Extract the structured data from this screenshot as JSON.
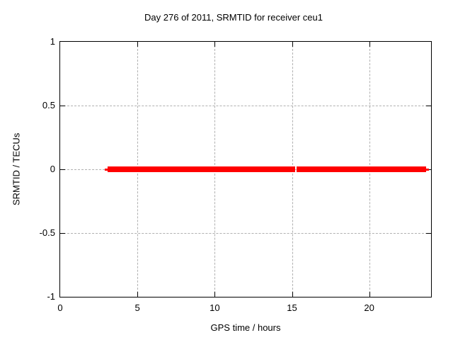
{
  "title": "Day 276 of 2011, SRMTID for receiver ceu1",
  "x_axis": {
    "label": "GPS time / hours",
    "ticks": [
      0,
      5,
      10,
      15,
      20
    ],
    "range": [
      0,
      24
    ]
  },
  "y_axis": {
    "label": "SRMTID / TECUs",
    "ticks": [
      1,
      0.5,
      0,
      -0.5,
      -1
    ],
    "range": [
      -1,
      1
    ]
  },
  "colors": {
    "series": "#ff0000",
    "grid": "#b0b0b0",
    "axis": "#000000",
    "background": "#ffffff"
  },
  "chart_data": {
    "type": "line",
    "title": "Day 276 of 2011, SRMTID for receiver ceu1",
    "xlabel": "GPS time / hours",
    "ylabel": "SRMTID / TECUs",
    "xlim": [
      0,
      24
    ],
    "ylim": [
      -1,
      1
    ],
    "xticks": [
      0,
      5,
      10,
      15,
      20
    ],
    "yticks": [
      1,
      0.5,
      0,
      -0.5,
      -1
    ],
    "grid": true,
    "legend": false,
    "series": [
      {
        "name": "SRMTID",
        "color": "#ff0000",
        "y_value": 0,
        "x_start_hours": 2.9,
        "x_end_hours": 23.9,
        "gap_at_hours": 15.25,
        "segments": [
          {
            "x1": 2.88,
            "x2": 3.12,
            "thickness": 3
          },
          {
            "x1": 3.08,
            "x2": 15.2,
            "thickness": 8
          },
          {
            "x1": 15.32,
            "x2": 23.66,
            "thickness": 8
          },
          {
            "x1": 23.62,
            "x2": 23.88,
            "thickness": 3
          }
        ]
      }
    ]
  }
}
